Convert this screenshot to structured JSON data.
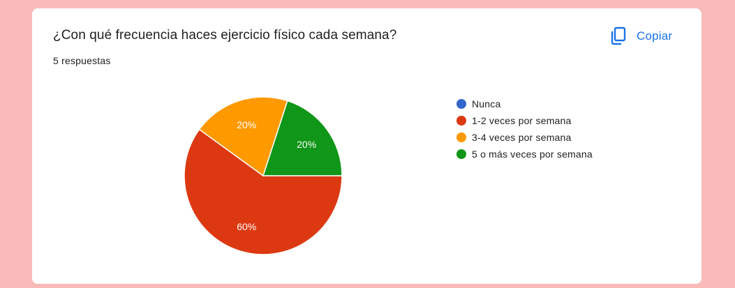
{
  "question": {
    "title": "¿Con qué frecuencia haces ejercicio físico cada semana?",
    "responses": "5 respuestas"
  },
  "actions": {
    "copy_label": "Copiar",
    "copy_icon": "copy-icon",
    "accent_color": "#1a73e8"
  },
  "chart_data": {
    "type": "pie",
    "categories": [
      "Nunca",
      "1-2 veces por semana",
      "3-4 veces por semana",
      "5 o más veces por semana"
    ],
    "values": [
      0,
      3,
      1,
      1
    ],
    "percent_labels": [
      "0%",
      "60%",
      "20%",
      "20%"
    ],
    "colors": [
      "#3366cc",
      "#dc3912",
      "#ff9900",
      "#109618"
    ],
    "legend_position": "right"
  }
}
